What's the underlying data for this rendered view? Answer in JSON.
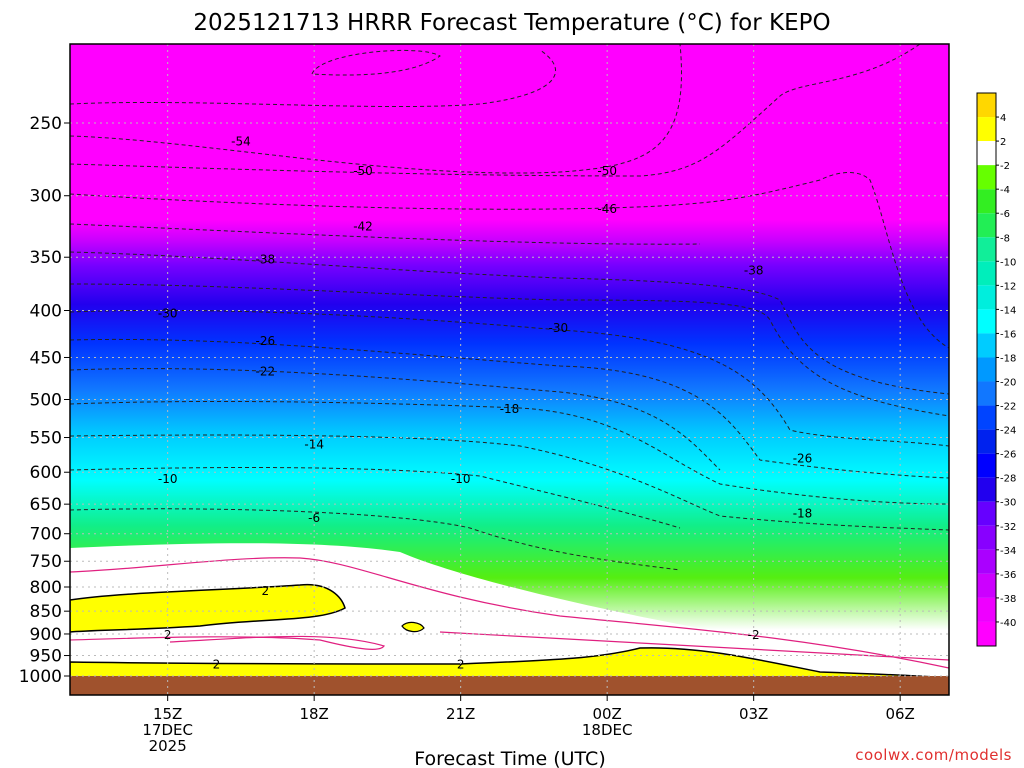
{
  "chart_data": {
    "type": "heatmap",
    "title": "2025121713 HRRR Forecast Temperature (°C) for KEPO",
    "xlabel": "Forecast Time (UTC)",
    "ylabel": "",
    "y_axis": {
      "scale": "log",
      "inverted": true,
      "ticks": [
        250,
        300,
        350,
        400,
        450,
        500,
        550,
        600,
        650,
        700,
        750,
        800,
        850,
        900,
        950,
        1000
      ],
      "units": "hPa"
    },
    "x_axis": {
      "range": [
        "2025-12-17T13:00Z",
        "2025-12-18T07:00Z"
      ],
      "ticks": [
        {
          "time": "2025-12-17T15:00Z",
          "lines": [
            "15Z",
            "17DEC",
            "2025"
          ]
        },
        {
          "time": "2025-12-17T18:00Z",
          "lines": [
            "18Z"
          ]
        },
        {
          "time": "2025-12-17T21:00Z",
          "lines": [
            "21Z"
          ]
        },
        {
          "time": "2025-12-18T00:00Z",
          "lines": [
            "00Z",
            "18DEC"
          ]
        },
        {
          "time": "2025-12-18T03:00Z",
          "lines": [
            "03Z"
          ]
        },
        {
          "time": "2025-12-18T06:00Z",
          "lines": [
            "06Z"
          ]
        }
      ]
    },
    "grid": true,
    "legend": "colorbar-right",
    "colorbar": {
      "levels": [
        4,
        2,
        -2,
        -4,
        -6,
        -8,
        -10,
        -12,
        -14,
        -16,
        -18,
        -20,
        -22,
        -24,
        -26,
        -28,
        -30,
        -32,
        -34,
        -36,
        -38,
        -40
      ],
      "colors": [
        "#ffd700",
        "#ffff00",
        "#ffffff",
        "#66ff00",
        "#33ee22",
        "#22ee55",
        "#11ee99",
        "#00eebb",
        "#00eedd",
        "#00ffff",
        "#00ccff",
        "#0099ff",
        "#1177ff",
        "#0044ff",
        "#0022ee",
        "#0000ff",
        "#2200ee",
        "#6600ff",
        "#8800ff",
        "#aa00ff",
        "#cc00ff",
        "#ee00ff",
        "#ff00ff"
      ]
    },
    "contour_labels": [
      {
        "value": "-54",
        "time": "2025-12-17T16:30Z",
        "pressure": 262
      },
      {
        "value": "-50",
        "time": "2025-12-17T19:00Z",
        "pressure": 282
      },
      {
        "value": "-50",
        "time": "2025-12-18T00:00Z",
        "pressure": 282
      },
      {
        "value": "-46",
        "time": "2025-12-18T00:00Z",
        "pressure": 310
      },
      {
        "value": "-42",
        "time": "2025-12-17T19:00Z",
        "pressure": 324
      },
      {
        "value": "-38",
        "time": "2025-12-17T17:00Z",
        "pressure": 352
      },
      {
        "value": "-38",
        "time": "2025-12-18T03:00Z",
        "pressure": 362
      },
      {
        "value": "-30",
        "time": "2025-12-17T15:00Z",
        "pressure": 403
      },
      {
        "value": "-30",
        "time": "2025-12-17T23:00Z",
        "pressure": 418
      },
      {
        "value": "-26",
        "time": "2025-12-17T17:00Z",
        "pressure": 432
      },
      {
        "value": "-22",
        "time": "2025-12-17T17:00Z",
        "pressure": 466
      },
      {
        "value": "-18",
        "time": "2025-12-17T22:00Z",
        "pressure": 512
      },
      {
        "value": "-26",
        "time": "2025-12-18T04:00Z",
        "pressure": 580
      },
      {
        "value": "-14",
        "time": "2025-12-17T18:00Z",
        "pressure": 560
      },
      {
        "value": "-10",
        "time": "2025-12-17T15:00Z",
        "pressure": 610
      },
      {
        "value": "-10",
        "time": "2025-12-17T21:00Z",
        "pressure": 610
      },
      {
        "value": "-18",
        "time": "2025-12-18T04:00Z",
        "pressure": 665
      },
      {
        "value": "-6",
        "time": "2025-12-17T18:00Z",
        "pressure": 673
      },
      {
        "value": "2",
        "time": "2025-12-17T17:00Z",
        "pressure": 808
      },
      {
        "value": "2",
        "time": "2025-12-17T15:00Z",
        "pressure": 902
      },
      {
        "value": "-2",
        "time": "2025-12-18T03:00Z",
        "pressure": 902
      },
      {
        "value": "2",
        "time": "2025-12-17T16:00Z",
        "pressure": 972
      },
      {
        "value": "2",
        "time": "2025-12-17T21:00Z",
        "pressure": 972
      }
    ]
  },
  "credit": "coolwx.com/models"
}
